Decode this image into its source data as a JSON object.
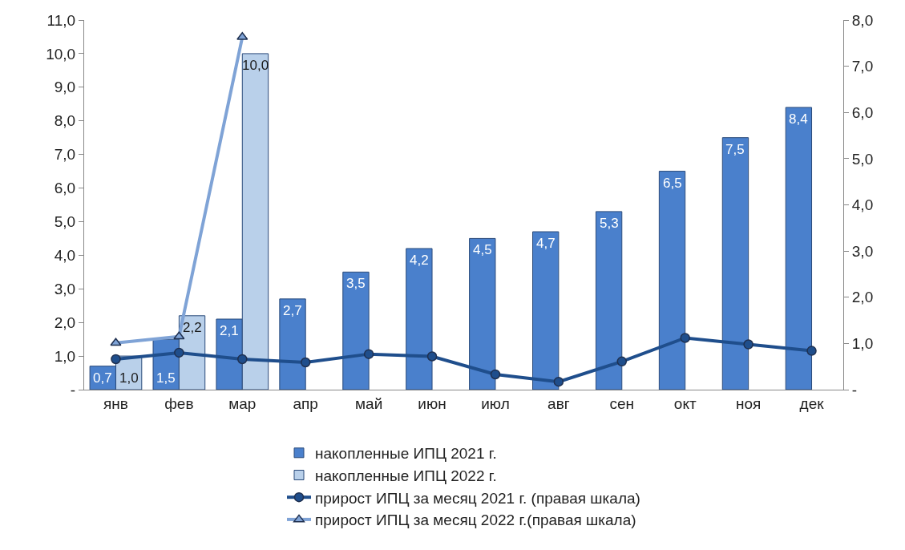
{
  "chart_data": {
    "type": "bar",
    "categories": [
      "янв",
      "фев",
      "мар",
      "апр",
      "май",
      "июн",
      "июл",
      "авг",
      "сен",
      "окт",
      "ноя",
      "дек"
    ],
    "series": [
      {
        "name": "накопленные ИПЦ 2021 г.",
        "color": "#4a80cc",
        "values": [
          0.7,
          1.5,
          2.1,
          2.7,
          3.5,
          4.2,
          4.5,
          4.7,
          5.3,
          6.5,
          7.5,
          8.4
        ],
        "value_labels": [
          "0,7",
          "1,5",
          "2,1",
          "2,7",
          "3,5",
          "4,2",
          "4,5",
          "4,7",
          "5,3",
          "6,5",
          "7,5",
          "8,4"
        ]
      },
      {
        "name": "накопленные ИПЦ 2022 г.",
        "color": "#b9d0ea",
        "values": [
          1.0,
          2.2,
          10.0,
          null,
          null,
          null,
          null,
          null,
          null,
          null,
          null,
          null
        ],
        "value_labels": [
          "1,0",
          "2,2",
          "10,0",
          null,
          null,
          null,
          null,
          null,
          null,
          null,
          null,
          null
        ]
      },
      {
        "name": "прирост ИПЦ за месяц 2021 г. (правая шкала)",
        "type": "line",
        "axis": "y2",
        "marker": "circle",
        "color": "#1f4e8c",
        "values": [
          0.66,
          0.8,
          0.66,
          0.59,
          0.77,
          0.72,
          0.33,
          0.17,
          0.61,
          1.12,
          0.98,
          0.84
        ]
      },
      {
        "name": "прирост ИПЦ за месяц 2022 г.(правая шкала)",
        "type": "line",
        "axis": "y2",
        "marker": "triangle",
        "color": "#7fa3d6",
        "values": [
          1.01,
          1.15,
          7.63,
          null,
          null,
          null,
          null,
          null,
          null,
          null,
          null,
          null
        ]
      }
    ],
    "ylim": [
      0,
      11
    ],
    "yticks": [
      {
        "value": 0,
        "label": "-"
      },
      {
        "value": 1,
        "label": "1,0"
      },
      {
        "value": 2,
        "label": "2,0"
      },
      {
        "value": 3,
        "label": "3,0"
      },
      {
        "value": 4,
        "label": "4,0"
      },
      {
        "value": 5,
        "label": "5,0"
      },
      {
        "value": 6,
        "label": "6,0"
      },
      {
        "value": 7,
        "label": "7,0"
      },
      {
        "value": 8,
        "label": "8,0"
      },
      {
        "value": 9,
        "label": "9,0"
      },
      {
        "value": 10,
        "label": "10,0"
      },
      {
        "value": 11,
        "label": "11,0"
      }
    ],
    "y2lim": [
      0,
      8
    ],
    "y2ticks": [
      {
        "value": 0,
        "label": "-"
      },
      {
        "value": 1,
        "label": "1,0"
      },
      {
        "value": 2,
        "label": "2,0"
      },
      {
        "value": 3,
        "label": "3,0"
      },
      {
        "value": 4,
        "label": "4,0"
      },
      {
        "value": 5,
        "label": "5,0"
      },
      {
        "value": 6,
        "label": "6,0"
      },
      {
        "value": 7,
        "label": "7,0"
      },
      {
        "value": 8,
        "label": "8,0"
      }
    ],
    "legend": "bottom"
  }
}
